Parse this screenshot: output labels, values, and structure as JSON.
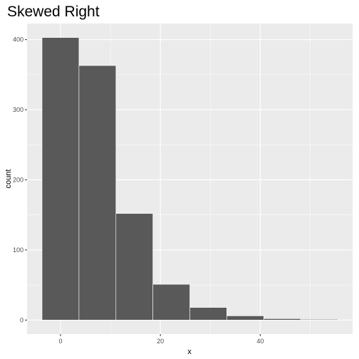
{
  "chart_data": {
    "type": "bar",
    "subtype": "histogram",
    "title": "Skewed Right",
    "xlabel": "x",
    "ylabel": "count",
    "bins": [
      {
        "x0": -3.7,
        "x1": 3.7,
        "count": 403
      },
      {
        "x0": 3.7,
        "x1": 11.1,
        "count": 363
      },
      {
        "x0": 11.1,
        "x1": 18.5,
        "count": 152
      },
      {
        "x0": 18.5,
        "x1": 25.9,
        "count": 51
      },
      {
        "x0": 25.9,
        "x1": 33.3,
        "count": 18
      },
      {
        "x0": 33.3,
        "x1": 40.7,
        "count": 6
      },
      {
        "x0": 40.7,
        "x1": 48.1,
        "count": 2
      },
      {
        "x0": 48.1,
        "x1": 55.5,
        "count": 1
      }
    ],
    "xlim": [
      -6.7,
      58.5
    ],
    "ylim": [
      -20,
      423
    ],
    "xticks": [
      0,
      20,
      40
    ],
    "yticks": [
      0,
      100,
      200,
      300,
      400
    ],
    "grid": true,
    "colors": {
      "panel": "#ebebeb",
      "grid_major": "#ffffff",
      "bar_fill": "#595959",
      "bar_outline": "#ffffff",
      "tick_text": "#4d4d4d",
      "tick_mark": "#333333"
    }
  }
}
